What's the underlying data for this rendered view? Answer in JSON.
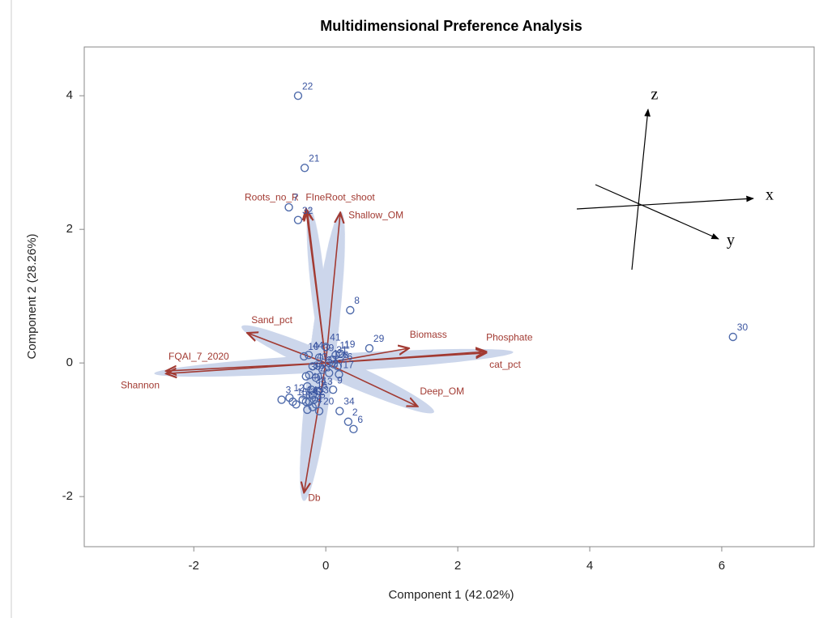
{
  "chart_data": {
    "type": "biplot",
    "title": "Multidimensional Preference Analysis",
    "x_label": "Component 1 (42.02%)",
    "y_label": "Component 2 (28.26%)",
    "xlim": [
      -3.66,
      7.4
    ],
    "ylim": [
      -2.75,
      4.73
    ],
    "xticks": [
      -2,
      0,
      2,
      4,
      6
    ],
    "yticks": [
      -2,
      0,
      2,
      4
    ],
    "point_color": "#4f6bab",
    "vector_color": "#a23a32",
    "points": {
      "labels": [
        "22",
        "21",
        "7",
        "32",
        "8",
        "29",
        "30",
        "19",
        "41",
        "44",
        "10",
        "39",
        "11",
        "31",
        "1",
        "28",
        "26",
        "43",
        "37",
        "27",
        "17",
        "36",
        "35",
        "23",
        "40",
        "38",
        "13",
        "16",
        "9",
        "3",
        "12",
        "15",
        "18",
        "14",
        "42",
        "33",
        "25",
        "24",
        "20",
        "4",
        "5",
        "34",
        "2",
        "6"
      ],
      "x": [
        -0.42,
        -0.32,
        -0.56,
        -0.42,
        0.37,
        0.66,
        6.17,
        0.22,
        0.0,
        -0.26,
        -0.33,
        -0.1,
        0.15,
        0.1,
        0.05,
        0.12,
        0.18,
        -0.2,
        -0.05,
        0.05,
        0.2,
        -0.25,
        -0.3,
        -0.15,
        -0.28,
        -0.22,
        -0.12,
        -0.2,
        0.11,
        -0.67,
        -0.55,
        -0.5,
        -0.45,
        -0.35,
        -0.25,
        -0.18,
        -0.3,
        -0.28,
        -0.1,
        -0.2,
        -0.15,
        0.21,
        0.34,
        0.42
      ],
      "y": [
        4.0,
        2.92,
        2.33,
        2.14,
        0.79,
        0.22,
        0.39,
        0.14,
        0.24,
        0.12,
        0.1,
        0.08,
        0.12,
        0.05,
        0.0,
        -0.02,
        -0.05,
        -0.05,
        -0.1,
        -0.15,
        -0.17,
        -0.18,
        -0.2,
        -0.22,
        -0.35,
        -0.4,
        -0.42,
        -0.48,
        -0.4,
        -0.55,
        -0.52,
        -0.58,
        -0.62,
        -0.55,
        -0.58,
        -0.55,
        -0.58,
        -0.7,
        -0.72,
        -0.66,
        -0.62,
        -0.72,
        -0.88,
        -0.99
      ]
    },
    "vectors": {
      "names": [
        "Roots_no_R",
        "FIneRoot_shoot",
        "Shallow_OM",
        "Sand_pct",
        "FQAI_7_2020",
        "Shannon",
        "Biomass",
        "Phosphate",
        "cat_pct",
        "Deep_OM",
        "Db"
      ],
      "x": [
        -0.3,
        -0.28,
        0.22,
        -1.19,
        -2.42,
        -2.42,
        1.26,
        2.43,
        2.43,
        1.39,
        -0.33
      ],
      "y": [
        2.3,
        2.28,
        2.25,
        0.45,
        -0.12,
        -0.16,
        0.22,
        0.17,
        0.15,
        -0.65,
        -1.94
      ]
    },
    "axis_glyph_labels": {
      "x": "x",
      "y": "y",
      "z": "z"
    }
  }
}
